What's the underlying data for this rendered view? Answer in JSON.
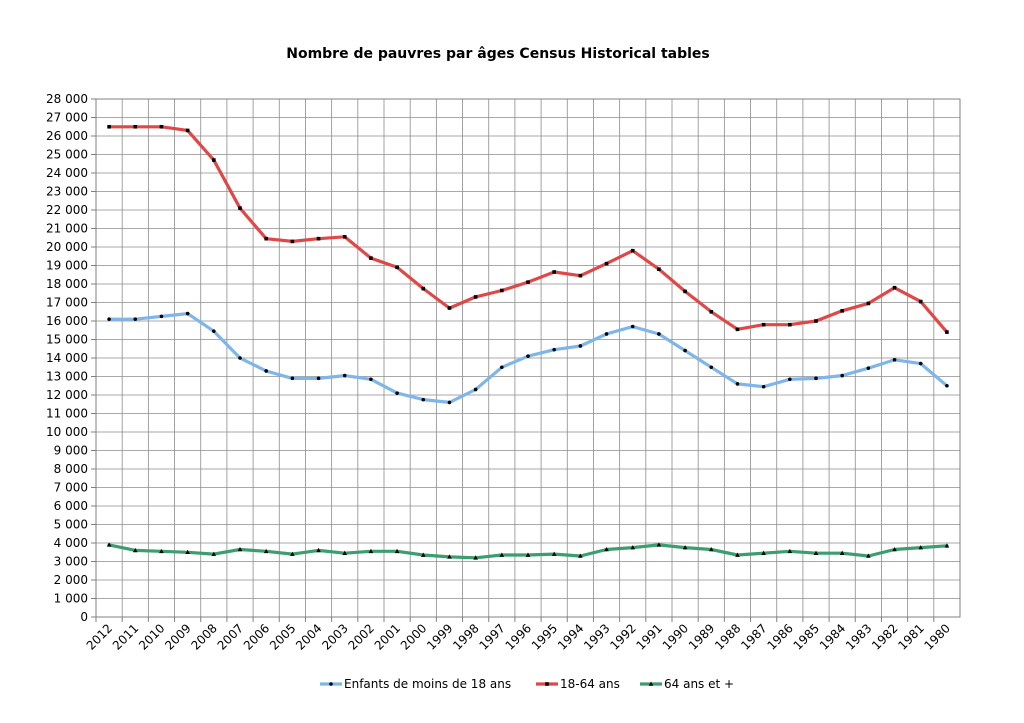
{
  "chart_data": {
    "type": "line",
    "title": "Nombre de pauvres par âges Census Historical tables",
    "xlabel": "",
    "ylabel": "",
    "ylim": [
      0,
      28000
    ],
    "ytick_step": 1000,
    "ytick_labels": [
      "0",
      "1 000",
      "2 000",
      "3 000",
      "4 000",
      "5 000",
      "6 000",
      "7 000",
      "8 000",
      "9 000",
      "10 000",
      "11 000",
      "12 000",
      "13 000",
      "14 000",
      "15 000",
      "16 000",
      "17 000",
      "18 000",
      "19 000",
      "20 000",
      "21 000",
      "22 000",
      "23 000",
      "24 000",
      "25 000",
      "26 000",
      "27 000",
      "28 000"
    ],
    "grid": true,
    "legend_position": "bottom",
    "categories": [
      "2012",
      "2011",
      "2010",
      "2009",
      "2008",
      "2007",
      "2006",
      "2005",
      "2004",
      "2003",
      "2002",
      "2001",
      "2000",
      "1999",
      "1998",
      "1997",
      "1996",
      "1995",
      "1994",
      "1993",
      "1992",
      "1991",
      "1990",
      "1989",
      "1988",
      "1987",
      "1986",
      "1985",
      "1984",
      "1983",
      "1982",
      "1981",
      "1980"
    ],
    "series": [
      {
        "name": "Enfants de moins de 18 ans",
        "color": "#7eb6ea",
        "marker": "circle",
        "values": [
          16100,
          16100,
          16250,
          16400,
          15450,
          14000,
          13300,
          12900,
          12900,
          13050,
          12850,
          12100,
          11750,
          11600,
          12300,
          13500,
          14100,
          14450,
          14650,
          15300,
          15700,
          15300,
          14400,
          13500,
          12600,
          12450,
          12850,
          12900,
          13050,
          13450,
          13900,
          13700,
          12500
        ]
      },
      {
        "name": "18-64 ans",
        "color": "#e04848",
        "marker": "square",
        "values": [
          26500,
          26500,
          26500,
          26300,
          24700,
          22100,
          20450,
          20300,
          20450,
          20550,
          19400,
          18900,
          17750,
          16700,
          17300,
          17650,
          18100,
          18650,
          18450,
          19100,
          19800,
          18800,
          17600,
          16500,
          15550,
          15800,
          15800,
          16000,
          16550,
          16950,
          17800,
          17050,
          15400
        ]
      },
      {
        "name": "64 ans et +",
        "color": "#3b9e6e",
        "marker": "triangle",
        "values": [
          3900,
          3600,
          3550,
          3500,
          3400,
          3650,
          3550,
          3400,
          3600,
          3450,
          3550,
          3550,
          3350,
          3250,
          3200,
          3350,
          3350,
          3400,
          3300,
          3650,
          3750,
          3900,
          3750,
          3650,
          3350,
          3450,
          3550,
          3450,
          3450,
          3300,
          3650,
          3750,
          3850
        ]
      }
    ]
  }
}
